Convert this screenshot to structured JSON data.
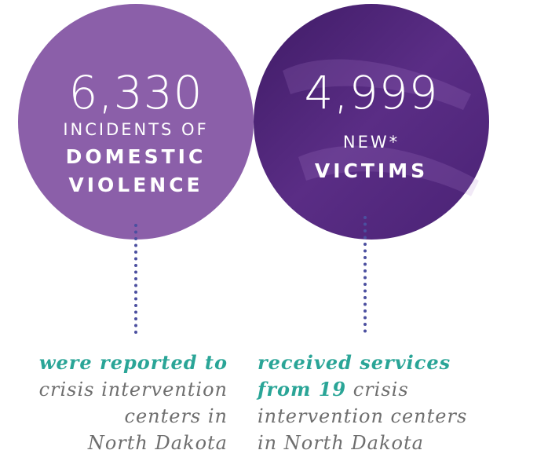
{
  "stats": [
    {
      "number": "6,330",
      "lines": [
        {
          "text": "INCIDENTS OF",
          "bold": false
        },
        {
          "text": "DOMESTIC",
          "bold": true
        },
        {
          "text": "VIOLENCE",
          "bold": true
        }
      ],
      "caption": [
        [
          {
            "text": "were reported to",
            "bold": true
          }
        ],
        [
          {
            "text": "crisis intervention",
            "bold": false
          }
        ],
        [
          {
            "text": "centers in",
            "bold": false
          }
        ],
        [
          {
            "text": "North Dakota",
            "bold": false
          }
        ]
      ]
    },
    {
      "number": "4,999",
      "lines": [
        {
          "text": "NEW*",
          "bold": false
        },
        {
          "text": "VICTIMS",
          "bold": true
        }
      ],
      "caption": [
        [
          {
            "text": "received services",
            "bold": true
          }
        ],
        [
          {
            "text": "from 19",
            "bold": true
          },
          {
            "text": " crisis",
            "bold": false
          }
        ],
        [
          {
            "text": "intervention centers",
            "bold": false
          }
        ],
        [
          {
            "text": "in North Dakota",
            "bold": false
          }
        ]
      ]
    }
  ]
}
